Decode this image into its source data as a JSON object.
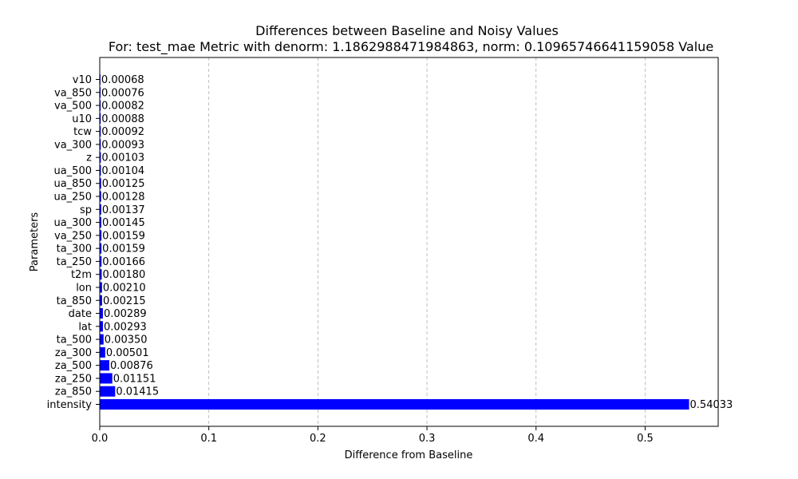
{
  "chart_data": {
    "type": "bar",
    "orientation": "horizontal",
    "title": "Differences between Baseline and Noisy Values",
    "subtitle": "For: test_mae Metric with denorm: 1.1862988471984863, norm: 0.10965746641159058 Value",
    "xlabel": "Difference from Baseline",
    "ylabel": "Parameters",
    "xlim": [
      0,
      0.567
    ],
    "xticks": [
      0.0,
      0.1,
      0.2,
      0.3,
      0.4,
      0.5
    ],
    "xtick_labels": [
      "0.0",
      "0.1",
      "0.2",
      "0.3",
      "0.4",
      "0.5"
    ],
    "grid": "x-dashed",
    "bar_color": "#0000ff",
    "categories": [
      "intensity",
      "za_850",
      "za_250",
      "za_500",
      "za_300",
      "ta_500",
      "lat",
      "date",
      "ta_850",
      "lon",
      "t2m",
      "ta_250",
      "ta_300",
      "va_250",
      "ua_300",
      "sp",
      "ua_250",
      "ua_850",
      "ua_500",
      "z",
      "va_300",
      "tcw",
      "u10",
      "va_500",
      "va_850",
      "v10"
    ],
    "values": [
      0.54033,
      0.01415,
      0.01151,
      0.00876,
      0.00501,
      0.0035,
      0.00293,
      0.00289,
      0.00215,
      0.0021,
      0.0018,
      0.00166,
      0.00159,
      0.00159,
      0.00145,
      0.00137,
      0.00128,
      0.00125,
      0.00104,
      0.00103,
      0.00093,
      0.00092,
      0.00088,
      0.00082,
      0.00076,
      0.00068
    ],
    "value_labels": [
      "0.54033",
      "0.01415",
      "0.01151",
      "0.00876",
      "0.00501",
      "0.00350",
      "0.00293",
      "0.00289",
      "0.00215",
      "0.00210",
      "0.00180",
      "0.00166",
      "0.00159",
      "0.00159",
      "0.00145",
      "0.00137",
      "0.00128",
      "0.00125",
      "0.00104",
      "0.00103",
      "0.00093",
      "0.00092",
      "0.00088",
      "0.00082",
      "0.00076",
      "0.00068"
    ]
  }
}
